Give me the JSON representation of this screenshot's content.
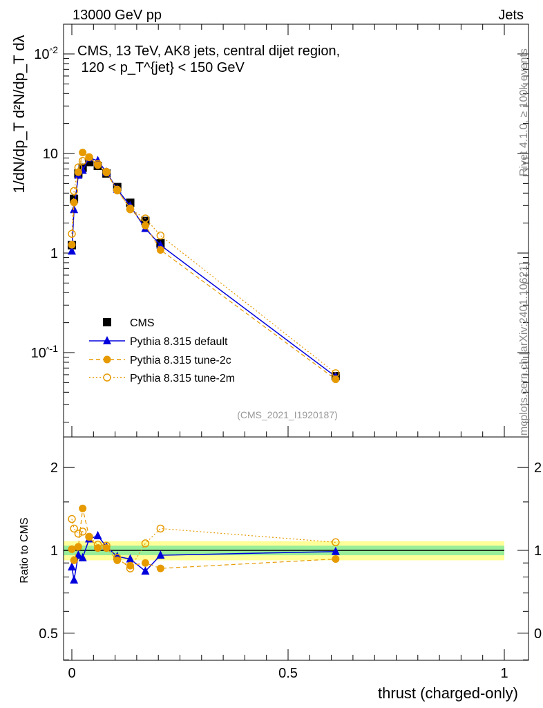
{
  "header": {
    "left": "13000 GeV pp",
    "right": "Jets"
  },
  "side": {
    "rivet": "Rivet 4.1.0, ≥ 100k events",
    "mcplots": "mcplots.cern.ch [arXiv:2401.10621]"
  },
  "analysis_id": "(CMS_2021_I1920187)",
  "chart_data": [
    {
      "type": "scatter",
      "title": "CMS, 13 TeV, AK8 jets, central dijet region, 120 < p_T^{jet} < 150 GeV",
      "ylabel": "1/dN/dp_T  d²N/dp_T dλ",
      "yscale": "log",
      "ylim": [
        0.02,
        200
      ],
      "xlim": [
        -0.02,
        1.05
      ],
      "yticks": [
        {
          "v": 0.1,
          "label": "10^-1"
        },
        {
          "v": 1,
          "label": "1"
        },
        {
          "v": 10,
          "label": "10"
        },
        {
          "v": 100,
          "label": "10^2"
        }
      ],
      "legend_position": "middle-left",
      "x": [
        0.0,
        0.005,
        0.015,
        0.025,
        0.04,
        0.06,
        0.08,
        0.105,
        0.135,
        0.17,
        0.205,
        0.61
      ],
      "cms": [
        1.2,
        3.5,
        6.3,
        7.2,
        8.2,
        7.5,
        6.3,
        4.6,
        3.2,
        2.1,
        1.25,
        0.058
      ],
      "series": [
        {
          "name": "CMS",
          "color": "#000000",
          "marker": "square",
          "ratio": [
            1,
            1,
            1,
            1,
            1,
            1,
            1,
            1,
            1,
            1,
            1,
            1
          ]
        },
        {
          "name": "Pythia 8.315 default",
          "color": "#0000dd",
          "marker": "triangle",
          "dash": "",
          "ratio": [
            0.87,
            0.78,
            0.96,
            0.94,
            1.1,
            1.13,
            1.03,
            0.95,
            0.93,
            0.84,
            0.96,
            0.99
          ]
        },
        {
          "name": "Pythia 8.315 tune-2c",
          "color": "#e69a00",
          "marker": "circle",
          "dash": "6,4",
          "ratio": [
            1.01,
            0.92,
            1.03,
            1.42,
            1.12,
            1.02,
            1.02,
            0.92,
            0.88,
            0.9,
            0.86,
            0.93
          ]
        },
        {
          "name": "Pythia 8.315 tune-2m",
          "color": "#e69a00",
          "marker": "open-circle",
          "dash": "2,3",
          "ratio": [
            1.3,
            1.2,
            1.15,
            1.17,
            1.12,
            1.05,
            1.04,
            0.94,
            0.86,
            1.06,
            1.2,
            1.07
          ]
        }
      ]
    },
    {
      "type": "line",
      "ylabel": "Ratio to CMS",
      "xlabel": "thrust (charged-only)",
      "yscale": "log",
      "ylim": [
        0.4,
        2.5
      ],
      "yticks": [
        {
          "v": 0.5,
          "label": "0.5"
        },
        {
          "v": 1,
          "label": "1"
        },
        {
          "v": 2,
          "label": "2"
        }
      ],
      "xticks": [
        {
          "v": 0,
          "label": "0"
        },
        {
          "v": 0.5,
          "label": "0.5"
        },
        {
          "v": 1,
          "label": "1"
        }
      ],
      "band_green": 0.04,
      "band_yellow": 0.08
    }
  ]
}
